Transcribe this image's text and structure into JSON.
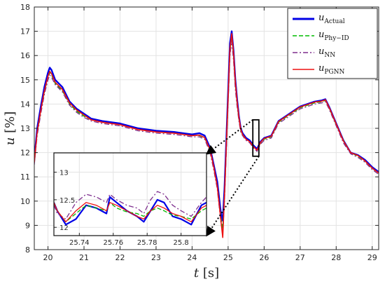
{
  "chart_data": {
    "type": "line",
    "xlabel": {
      "var": "t",
      "unit": "[s]"
    },
    "ylabel": {
      "var": "u",
      "unit": "[%]"
    },
    "xlim": [
      19.62,
      29.18
    ],
    "ylim": [
      8,
      18
    ],
    "xticks": [
      "20",
      "21",
      "22",
      "23",
      "24",
      "25",
      "26",
      "27",
      "28",
      "29"
    ],
    "yticks": [
      "8",
      "9",
      "10",
      "11",
      "12",
      "13",
      "14",
      "15",
      "16",
      "17",
      "18"
    ],
    "grid": true,
    "legend_position": "top-right",
    "series": [
      {
        "key": "actual",
        "name": "u",
        "sub": "Actual",
        "color": "#0000e6",
        "dash": "solid",
        "x": [
          19.62,
          19.7,
          19.8,
          19.9,
          20.0,
          20.05,
          20.1,
          20.2,
          20.4,
          20.6,
          20.8,
          21.0,
          21.2,
          21.5,
          22.0,
          22.5,
          23.0,
          23.5,
          24.0,
          24.2,
          24.35,
          24.5,
          24.6,
          24.7,
          24.8,
          24.85,
          24.9,
          24.95,
          25.0,
          25.05,
          25.1,
          25.15,
          25.2,
          25.25,
          25.3,
          25.35,
          25.4,
          25.5,
          25.6,
          25.7,
          25.8,
          25.9,
          26.0,
          26.2,
          26.4,
          26.6,
          26.8,
          27.0,
          27.2,
          27.4,
          27.6,
          27.7,
          27.8,
          28.0,
          28.2,
          28.4,
          28.6,
          28.8,
          29.0,
          29.18
        ],
        "y": [
          11.7,
          13.0,
          13.9,
          14.7,
          15.3,
          15.5,
          15.4,
          15.0,
          14.7,
          14.1,
          13.8,
          13.6,
          13.4,
          13.3,
          13.2,
          13.0,
          12.9,
          12.85,
          12.75,
          12.8,
          12.7,
          12.2,
          11.5,
          10.8,
          9.5,
          9.2,
          10.5,
          12.5,
          14.5,
          16.5,
          17.0,
          16.2,
          15.0,
          14.2,
          13.5,
          13.0,
          12.8,
          12.6,
          12.5,
          12.3,
          12.15,
          12.45,
          12.6,
          12.7,
          13.3,
          13.5,
          13.7,
          13.9,
          14.0,
          14.1,
          14.15,
          14.2,
          13.9,
          13.2,
          12.5,
          12.0,
          11.9,
          11.7,
          11.4,
          11.2
        ]
      },
      {
        "key": "phy",
        "name": "u",
        "sub": "Phy−ID",
        "color": "#00bb00",
        "dash": "dashed",
        "x": [
          19.62,
          19.7,
          19.8,
          19.9,
          20.0,
          20.05,
          20.1,
          20.2,
          20.4,
          20.6,
          20.8,
          21.0,
          21.2,
          21.5,
          22.0,
          22.5,
          23.0,
          23.5,
          24.0,
          24.2,
          24.35,
          24.5,
          24.6,
          24.7,
          24.8,
          24.85,
          24.9,
          24.95,
          25.0,
          25.05,
          25.1,
          25.15,
          25.2,
          25.25,
          25.3,
          25.35,
          25.4,
          25.5,
          25.6,
          25.7,
          25.8,
          25.9,
          26.0,
          26.2,
          26.4,
          26.6,
          26.8,
          27.0,
          27.2,
          27.4,
          27.6,
          27.7,
          27.8,
          28.0,
          28.2,
          28.4,
          28.6,
          28.8,
          29.0,
          29.18
        ],
        "y": [
          11.6,
          12.8,
          13.7,
          14.5,
          15.1,
          15.3,
          15.2,
          14.85,
          14.55,
          14.0,
          13.7,
          13.5,
          13.35,
          13.25,
          13.15,
          12.95,
          12.85,
          12.8,
          12.7,
          12.7,
          12.6,
          12.1,
          11.4,
          10.6,
          9.3,
          8.9,
          10.2,
          12.2,
          14.2,
          16.2,
          16.8,
          16.0,
          14.8,
          14.0,
          13.4,
          12.9,
          12.75,
          12.55,
          12.45,
          12.25,
          12.1,
          12.4,
          12.55,
          12.65,
          13.25,
          13.45,
          13.65,
          13.85,
          13.95,
          14.05,
          14.1,
          14.15,
          13.85,
          13.15,
          12.5,
          12.0,
          11.85,
          11.65,
          11.35,
          11.15
        ]
      },
      {
        "key": "nn",
        "name": "u",
        "sub": "NN",
        "color": "#7e2f8e",
        "dash": "dashdot",
        "x": [
          19.62,
          19.7,
          19.8,
          19.9,
          20.0,
          20.05,
          20.1,
          20.2,
          20.4,
          20.6,
          20.8,
          21.0,
          21.2,
          21.5,
          22.0,
          22.5,
          23.0,
          23.5,
          24.0,
          24.2,
          24.35,
          24.5,
          24.6,
          24.7,
          24.8,
          24.85,
          24.9,
          24.95,
          25.0,
          25.05,
          25.1,
          25.15,
          25.2,
          25.25,
          25.3,
          25.35,
          25.4,
          25.5,
          25.6,
          25.7,
          25.8,
          25.9,
          26.0,
          26.2,
          26.4,
          26.6,
          26.8,
          27.0,
          27.2,
          27.4,
          27.6,
          27.7,
          27.8,
          28.0,
          28.2,
          28.4,
          28.6,
          28.8,
          29.0,
          29.18
        ],
        "y": [
          11.5,
          12.7,
          13.6,
          14.4,
          15.0,
          15.2,
          15.1,
          14.8,
          14.5,
          13.95,
          13.65,
          13.45,
          13.3,
          13.2,
          13.1,
          12.9,
          12.8,
          12.75,
          12.65,
          12.65,
          12.55,
          12.0,
          11.3,
          10.5,
          9.1,
          8.7,
          10.0,
          12.0,
          14.0,
          16.0,
          16.6,
          15.8,
          14.6,
          13.9,
          13.3,
          12.85,
          12.7,
          12.5,
          12.4,
          12.2,
          12.05,
          12.35,
          12.5,
          12.6,
          13.2,
          13.4,
          13.6,
          13.8,
          13.9,
          14.0,
          14.05,
          14.1,
          13.8,
          13.1,
          12.4,
          11.95,
          11.8,
          11.6,
          11.3,
          11.1
        ]
      },
      {
        "key": "pgnn",
        "name": "u",
        "sub": "PGNN",
        "color": "#ee1111",
        "dash": "solid",
        "x": [
          19.62,
          19.7,
          19.8,
          19.9,
          20.0,
          20.05,
          20.1,
          20.2,
          20.4,
          20.6,
          20.8,
          21.0,
          21.2,
          21.5,
          22.0,
          22.5,
          23.0,
          23.5,
          24.0,
          24.2,
          24.35,
          24.5,
          24.6,
          24.7,
          24.8,
          24.85,
          24.9,
          24.95,
          25.0,
          25.05,
          25.1,
          25.15,
          25.2,
          25.25,
          25.3,
          25.35,
          25.4,
          25.5,
          25.6,
          25.7,
          25.8,
          25.9,
          26.0,
          26.2,
          26.4,
          26.6,
          26.8,
          27.0,
          27.2,
          27.4,
          27.6,
          27.7,
          27.8,
          28.0,
          28.2,
          28.4,
          28.6,
          28.8,
          29.0,
          29.18
        ],
        "y": [
          11.6,
          12.85,
          13.75,
          14.55,
          15.15,
          15.35,
          15.25,
          14.9,
          14.6,
          14.05,
          13.75,
          13.55,
          13.35,
          13.25,
          13.15,
          12.95,
          12.85,
          12.8,
          12.7,
          12.72,
          12.62,
          12.12,
          11.42,
          10.6,
          9.2,
          8.5,
          10.2,
          12.3,
          14.3,
          16.3,
          16.9,
          16.1,
          14.9,
          14.1,
          13.45,
          12.95,
          12.75,
          12.55,
          12.45,
          12.25,
          12.1,
          12.42,
          12.58,
          12.68,
          13.28,
          13.48,
          13.68,
          13.88,
          13.98,
          14.08,
          14.12,
          14.18,
          13.88,
          13.18,
          12.48,
          12.0,
          11.88,
          11.66,
          11.36,
          11.16
        ]
      }
    ],
    "inset": {
      "xlim": [
        25.725,
        25.815
      ],
      "ylim": [
        11.85,
        13.35
      ],
      "xticks": [
        "25.74",
        "25.76",
        "25.78",
        "25.8"
      ],
      "yticks": [
        "12",
        "12.5",
        "13"
      ],
      "grid": true,
      "series": [
        {
          "key": "actual",
          "x": [
            25.725,
            25.727,
            25.732,
            25.738,
            25.744,
            25.75,
            25.756,
            25.758,
            25.762,
            25.768,
            25.774,
            25.778,
            25.782,
            25.786,
            25.79,
            25.795,
            25.8,
            25.806,
            25.812,
            25.815
          ],
          "y": [
            12.45,
            12.3,
            12.05,
            12.15,
            12.4,
            12.35,
            12.25,
            12.55,
            12.45,
            12.3,
            12.2,
            12.1,
            12.3,
            12.5,
            12.45,
            12.2,
            12.15,
            12.05,
            12.4,
            12.45
          ]
        },
        {
          "key": "phy",
          "x": [
            25.725,
            25.727,
            25.732,
            25.738,
            25.744,
            25.75,
            25.756,
            25.758,
            25.762,
            25.768,
            25.774,
            25.778,
            25.782,
            25.786,
            25.79,
            25.795,
            25.8,
            25.806,
            25.812,
            25.815
          ],
          "y": [
            12.45,
            12.3,
            12.1,
            12.25,
            12.4,
            12.35,
            12.3,
            12.45,
            12.35,
            12.28,
            12.25,
            12.2,
            12.3,
            12.35,
            12.3,
            12.22,
            12.2,
            12.15,
            12.3,
            12.35
          ]
        },
        {
          "key": "nn",
          "x": [
            25.725,
            25.727,
            25.732,
            25.738,
            25.744,
            25.75,
            25.756,
            25.758,
            25.762,
            25.768,
            25.774,
            25.778,
            25.782,
            25.786,
            25.79,
            25.795,
            25.8,
            25.806,
            25.812,
            25.815
          ],
          "y": [
            12.4,
            12.25,
            12.15,
            12.45,
            12.6,
            12.55,
            12.45,
            12.6,
            12.5,
            12.4,
            12.35,
            12.25,
            12.5,
            12.65,
            12.6,
            12.4,
            12.3,
            12.2,
            12.45,
            12.55
          ]
        },
        {
          "key": "pgnn",
          "x": [
            25.725,
            25.727,
            25.732,
            25.738,
            25.744,
            25.75,
            25.756,
            25.758,
            25.762,
            25.768,
            25.774,
            25.778,
            25.782,
            25.786,
            25.79,
            25.795,
            25.8,
            25.806,
            25.812,
            25.815
          ],
          "y": [
            12.45,
            12.3,
            12.1,
            12.3,
            12.45,
            12.4,
            12.3,
            12.45,
            12.4,
            12.3,
            12.2,
            12.15,
            12.3,
            12.4,
            12.35,
            12.25,
            12.2,
            12.1,
            12.35,
            12.4
          ]
        }
      ]
    }
  }
}
